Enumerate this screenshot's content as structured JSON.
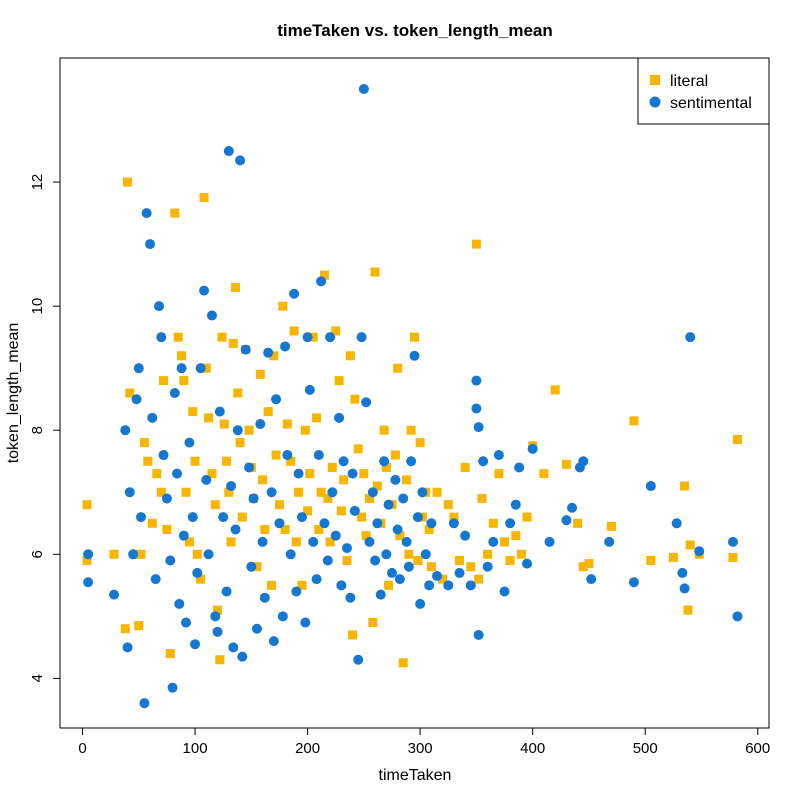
{
  "chart_data": {
    "type": "scatter",
    "title": "timeTaken vs. token_length_mean",
    "xlabel": "timeTaken",
    "ylabel": "token_length_mean",
    "xlim": [
      -20,
      610
    ],
    "ylim": [
      3.2,
      14.0
    ],
    "x_ticks": [
      0,
      100,
      200,
      300,
      400,
      500,
      600
    ],
    "y_ticks": [
      4,
      6,
      8,
      10,
      12
    ],
    "grid": false,
    "legend_position": "top-right",
    "series": [
      {
        "name": "literal",
        "color": "#F7B500",
        "marker": "square",
        "points": [
          [
            4,
            6.8
          ],
          [
            4,
            5.9
          ],
          [
            28,
            6.0
          ],
          [
            38,
            4.8
          ],
          [
            40,
            12.0
          ],
          [
            42,
            8.6
          ],
          [
            48,
            6.0
          ],
          [
            50,
            4.85
          ],
          [
            52,
            6.0
          ],
          [
            55,
            7.8
          ],
          [
            58,
            7.5
          ],
          [
            62,
            6.5
          ],
          [
            66,
            7.3
          ],
          [
            70,
            7.0
          ],
          [
            72,
            8.8
          ],
          [
            75,
            6.4
          ],
          [
            78,
            4.4
          ],
          [
            82,
            11.5
          ],
          [
            85,
            9.5
          ],
          [
            88,
            9.2
          ],
          [
            90,
            8.8
          ],
          [
            92,
            7.0
          ],
          [
            95,
            6.2
          ],
          [
            98,
            8.3
          ],
          [
            100,
            7.5
          ],
          [
            102,
            6.0
          ],
          [
            105,
            5.6
          ],
          [
            108,
            11.75
          ],
          [
            110,
            9.0
          ],
          [
            112,
            8.2
          ],
          [
            115,
            7.3
          ],
          [
            118,
            6.8
          ],
          [
            120,
            5.1
          ],
          [
            122,
            4.3
          ],
          [
            124,
            9.5
          ],
          [
            126,
            8.1
          ],
          [
            128,
            7.5
          ],
          [
            130,
            7.0
          ],
          [
            132,
            6.2
          ],
          [
            134,
            9.4
          ],
          [
            136,
            10.3
          ],
          [
            138,
            8.6
          ],
          [
            140,
            7.8
          ],
          [
            142,
            6.6
          ],
          [
            145,
            9.3
          ],
          [
            148,
            8.0
          ],
          [
            150,
            7.4
          ],
          [
            152,
            6.9
          ],
          [
            155,
            5.8
          ],
          [
            158,
            8.9
          ],
          [
            160,
            7.2
          ],
          [
            162,
            6.4
          ],
          [
            165,
            8.3
          ],
          [
            168,
            5.5
          ],
          [
            170,
            9.2
          ],
          [
            172,
            7.6
          ],
          [
            175,
            6.8
          ],
          [
            178,
            10.0
          ],
          [
            180,
            6.4
          ],
          [
            182,
            8.1
          ],
          [
            185,
            7.5
          ],
          [
            188,
            9.6
          ],
          [
            190,
            6.2
          ],
          [
            192,
            7.0
          ],
          [
            195,
            5.5
          ],
          [
            198,
            8.0
          ],
          [
            200,
            6.7
          ],
          [
            202,
            7.3
          ],
          [
            205,
            9.5
          ],
          [
            208,
            8.2
          ],
          [
            210,
            6.4
          ],
          [
            212,
            7.0
          ],
          [
            215,
            10.5
          ],
          [
            218,
            6.9
          ],
          [
            220,
            6.2
          ],
          [
            222,
            7.4
          ],
          [
            225,
            9.6
          ],
          [
            228,
            8.8
          ],
          [
            230,
            6.7
          ],
          [
            232,
            7.2
          ],
          [
            235,
            5.9
          ],
          [
            238,
            9.2
          ],
          [
            240,
            4.7
          ],
          [
            242,
            8.5
          ],
          [
            245,
            7.7
          ],
          [
            248,
            6.6
          ],
          [
            250,
            7.3
          ],
          [
            252,
            6.3
          ],
          [
            255,
            6.9
          ],
          [
            258,
            4.9
          ],
          [
            260,
            10.55
          ],
          [
            262,
            7.1
          ],
          [
            265,
            6.5
          ],
          [
            268,
            8.0
          ],
          [
            270,
            7.4
          ],
          [
            272,
            5.5
          ],
          [
            275,
            6.8
          ],
          [
            278,
            7.6
          ],
          [
            280,
            9.0
          ],
          [
            282,
            6.3
          ],
          [
            285,
            4.25
          ],
          [
            288,
            7.2
          ],
          [
            290,
            6.0
          ],
          [
            292,
            8.0
          ],
          [
            295,
            9.5
          ],
          [
            298,
            5.9
          ],
          [
            300,
            7.8
          ],
          [
            302,
            6.6
          ],
          [
            305,
            7.0
          ],
          [
            308,
            6.4
          ],
          [
            310,
            5.8
          ],
          [
            315,
            7.0
          ],
          [
            320,
            5.6
          ],
          [
            325,
            6.8
          ],
          [
            330,
            6.6
          ],
          [
            335,
            5.9
          ],
          [
            340,
            7.4
          ],
          [
            345,
            5.8
          ],
          [
            350,
            11.0
          ],
          [
            352,
            5.6
          ],
          [
            355,
            6.9
          ],
          [
            360,
            6.0
          ],
          [
            365,
            6.5
          ],
          [
            370,
            7.3
          ],
          [
            375,
            6.2
          ],
          [
            380,
            5.9
          ],
          [
            385,
            6.3
          ],
          [
            390,
            6.0
          ],
          [
            395,
            6.6
          ],
          [
            400,
            7.75
          ],
          [
            410,
            7.3
          ],
          [
            420,
            8.65
          ],
          [
            430,
            7.45
          ],
          [
            440,
            6.5
          ],
          [
            445,
            5.8
          ],
          [
            450,
            5.85
          ],
          [
            470,
            6.45
          ],
          [
            490,
            8.15
          ],
          [
            505,
            5.9
          ],
          [
            525,
            5.95
          ],
          [
            535,
            7.1
          ],
          [
            538,
            5.1
          ],
          [
            540,
            6.15
          ],
          [
            548,
            6.0
          ],
          [
            578,
            5.95
          ],
          [
            582,
            7.85
          ]
        ]
      },
      {
        "name": "sentimental",
        "color": "#1577D0",
        "marker": "circle",
        "points": [
          [
            5,
            6.0
          ],
          [
            5,
            5.55
          ],
          [
            28,
            5.35
          ],
          [
            38,
            8.0
          ],
          [
            40,
            4.5
          ],
          [
            42,
            7.0
          ],
          [
            45,
            6.0
          ],
          [
            48,
            8.5
          ],
          [
            50,
            9.0
          ],
          [
            52,
            6.6
          ],
          [
            55,
            3.6
          ],
          [
            57,
            11.5
          ],
          [
            60,
            11.0
          ],
          [
            62,
            8.2
          ],
          [
            65,
            5.6
          ],
          [
            68,
            10.0
          ],
          [
            70,
            9.5
          ],
          [
            72,
            7.6
          ],
          [
            75,
            6.9
          ],
          [
            78,
            5.9
          ],
          [
            80,
            3.85
          ],
          [
            82,
            8.6
          ],
          [
            84,
            7.3
          ],
          [
            86,
            5.2
          ],
          [
            88,
            9.0
          ],
          [
            90,
            6.3
          ],
          [
            92,
            4.9
          ],
          [
            95,
            7.8
          ],
          [
            98,
            6.6
          ],
          [
            100,
            4.55
          ],
          [
            102,
            5.7
          ],
          [
            105,
            9.0
          ],
          [
            108,
            10.25
          ],
          [
            110,
            7.2
          ],
          [
            112,
            6.0
          ],
          [
            115,
            9.85
          ],
          [
            118,
            5.0
          ],
          [
            120,
            4.75
          ],
          [
            122,
            8.3
          ],
          [
            125,
            6.6
          ],
          [
            128,
            5.4
          ],
          [
            130,
            12.5
          ],
          [
            132,
            7.1
          ],
          [
            134,
            4.5
          ],
          [
            136,
            6.4
          ],
          [
            138,
            8.0
          ],
          [
            140,
            12.35
          ],
          [
            142,
            4.35
          ],
          [
            145,
            9.3
          ],
          [
            148,
            7.4
          ],
          [
            150,
            5.8
          ],
          [
            152,
            6.9
          ],
          [
            155,
            4.8
          ],
          [
            158,
            8.1
          ],
          [
            160,
            6.2
          ],
          [
            162,
            5.3
          ],
          [
            165,
            9.25
          ],
          [
            168,
            7.0
          ],
          [
            170,
            4.6
          ],
          [
            172,
            8.5
          ],
          [
            175,
            6.5
          ],
          [
            178,
            5.0
          ],
          [
            180,
            9.35
          ],
          [
            182,
            7.6
          ],
          [
            185,
            6.0
          ],
          [
            188,
            10.2
          ],
          [
            190,
            5.4
          ],
          [
            192,
            7.3
          ],
          [
            195,
            6.6
          ],
          [
            198,
            4.9
          ],
          [
            200,
            9.5
          ],
          [
            202,
            8.65
          ],
          [
            205,
            6.2
          ],
          [
            208,
            5.6
          ],
          [
            210,
            7.6
          ],
          [
            212,
            10.4
          ],
          [
            215,
            6.5
          ],
          [
            218,
            5.9
          ],
          [
            220,
            9.5
          ],
          [
            222,
            7.0
          ],
          [
            225,
            6.3
          ],
          [
            228,
            8.2
          ],
          [
            230,
            5.5
          ],
          [
            232,
            7.5
          ],
          [
            235,
            6.1
          ],
          [
            238,
            5.3
          ],
          [
            240,
            7.3
          ],
          [
            242,
            6.7
          ],
          [
            245,
            4.3
          ],
          [
            248,
            9.5
          ],
          [
            250,
            13.5
          ],
          [
            252,
            8.45
          ],
          [
            255,
            6.2
          ],
          [
            258,
            7.0
          ],
          [
            260,
            5.9
          ],
          [
            262,
            6.5
          ],
          [
            265,
            5.35
          ],
          [
            268,
            7.5
          ],
          [
            270,
            6.0
          ],
          [
            272,
            6.8
          ],
          [
            275,
            5.7
          ],
          [
            278,
            7.2
          ],
          [
            280,
            6.4
          ],
          [
            282,
            5.6
          ],
          [
            285,
            6.9
          ],
          [
            288,
            6.2
          ],
          [
            290,
            5.8
          ],
          [
            292,
            7.5
          ],
          [
            295,
            9.2
          ],
          [
            298,
            6.6
          ],
          [
            300,
            5.2
          ],
          [
            302,
            7.0
          ],
          [
            305,
            6.0
          ],
          [
            308,
            5.5
          ],
          [
            310,
            6.5
          ],
          [
            315,
            5.65
          ],
          [
            325,
            5.5
          ],
          [
            330,
            6.5
          ],
          [
            335,
            5.7
          ],
          [
            340,
            6.3
          ],
          [
            345,
            5.5
          ],
          [
            350,
            8.8
          ],
          [
            350,
            8.35
          ],
          [
            352,
            8.05
          ],
          [
            352,
            4.7
          ],
          [
            356,
            7.5
          ],
          [
            360,
            5.8
          ],
          [
            365,
            6.2
          ],
          [
            370,
            7.6
          ],
          [
            375,
            5.4
          ],
          [
            380,
            6.5
          ],
          [
            385,
            6.8
          ],
          [
            388,
            7.4
          ],
          [
            395,
            5.85
          ],
          [
            400,
            7.7
          ],
          [
            415,
            6.2
          ],
          [
            430,
            6.55
          ],
          [
            435,
            6.75
          ],
          [
            442,
            7.4
          ],
          [
            445,
            7.5
          ],
          [
            452,
            5.6
          ],
          [
            468,
            6.2
          ],
          [
            490,
            5.55
          ],
          [
            505,
            7.1
          ],
          [
            528,
            6.5
          ],
          [
            533,
            5.7
          ],
          [
            535,
            5.45
          ],
          [
            540,
            9.5
          ],
          [
            548,
            6.05
          ],
          [
            578,
            6.2
          ],
          [
            582,
            5.0
          ]
        ]
      }
    ]
  }
}
